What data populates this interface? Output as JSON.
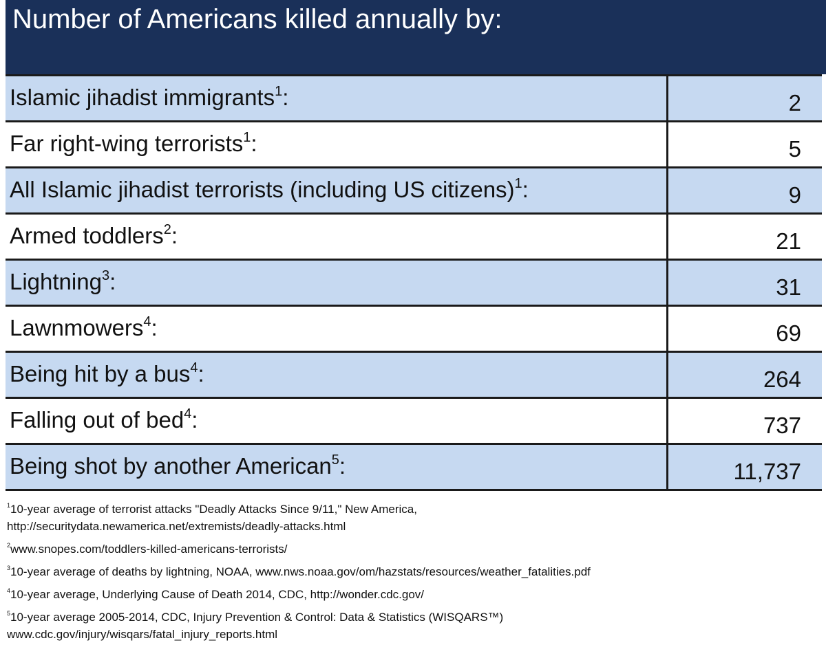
{
  "title": "Number of Americans killed annually by:",
  "rows": [
    {
      "label": "Islamic jihadist immigrants",
      "sup": "1",
      "value": "2"
    },
    {
      "label": "Far right-wing terrorists",
      "sup": "1",
      "value": "5"
    },
    {
      "label": "All Islamic jihadist terrorists (including US citizens)",
      "sup": "1",
      "value": "9"
    },
    {
      "label": "Armed toddlers",
      "sup": "2",
      "value": "21"
    },
    {
      "label": "Lightning",
      "sup": "3",
      "value": "31"
    },
    {
      "label": "Lawnmowers",
      "sup": "4",
      "value": "69"
    },
    {
      "label": "Being hit by a bus",
      "sup": "4",
      "value": "264"
    },
    {
      "label": "Falling out of bed",
      "sup": "4",
      "value": "737"
    },
    {
      "label": "Being shot by another American",
      "sup": "5",
      "value": "11,737"
    }
  ],
  "footnotes": [
    {
      "sup": "1",
      "text": "10-year average of terrorist attacks \"Deadly Attacks Since 9/11,\" New America,"
    },
    {
      "sup": "",
      "text": "http://securitydata.newamerica.net/extremists/deadly-attacks.html"
    },
    {
      "sup": "2",
      "text": "www.snopes.com/toddlers-killed-americans-terrorists/"
    },
    {
      "sup": "3",
      "text": "10-year average of deaths by lightning, NOAA, www.nws.noaa.gov/om/hazstats/resources/weather_fatalities.pdf"
    },
    {
      "sup": "4",
      "text": "10-year average, Underlying Cause of Death 2014, CDC, http://wonder.cdc.gov/"
    },
    {
      "sup": "5",
      "text": "10-year average 2005-2014, CDC, Injury Prevention & Control: Data & Statistics (WISQARS™)"
    },
    {
      "sup": "",
      "text": "www.cdc.gov/injury/wisqars/fatal_injury_reports.html"
    }
  ],
  "colors": {
    "header_bg": "#1a3059",
    "row_shaded": "#c6d9f1",
    "row_plain": "#ffffff"
  }
}
